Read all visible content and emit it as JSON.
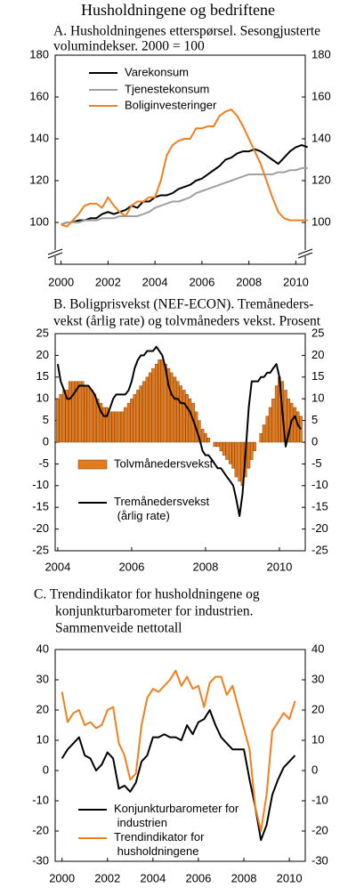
{
  "title": "Husholdningene og bedriftene",
  "chart_data": [
    {
      "type": "line",
      "title": [
        "A. Husholdningenes etterspørsel. Sesongjusterte",
        "volumindekser. 2000 = 100"
      ],
      "xlim": [
        1999.75,
        2010.4
      ],
      "xticks": [
        2000,
        2002,
        2004,
        2006,
        2008,
        2010
      ],
      "ylim": [
        80,
        180
      ],
      "yticks": [
        100,
        120,
        140,
        160,
        180
      ],
      "axis_break": true,
      "legend": "upper left",
      "x": [
        2000,
        2000.25,
        2000.5,
        2000.75,
        2001,
        2001.25,
        2001.5,
        2001.75,
        2002,
        2002.25,
        2002.5,
        2002.75,
        2003,
        2003.25,
        2003.5,
        2003.75,
        2004,
        2004.25,
        2004.5,
        2004.75,
        2005,
        2005.25,
        2005.5,
        2005.75,
        2006,
        2006.25,
        2006.5,
        2006.75,
        2007,
        2007.25,
        2007.5,
        2007.75,
        2008,
        2008.25,
        2008.5,
        2008.75,
        2009,
        2009.25,
        2009.5,
        2009.75,
        2010,
        2010.25,
        2010.5
      ],
      "series": [
        {
          "name": "Varekonsum",
          "color": "#000000",
          "values": [
            99,
            100,
            100,
            101,
            101,
            102,
            102,
            104,
            105,
            104,
            105,
            106,
            108,
            107,
            110,
            110,
            112,
            113,
            113,
            114,
            116,
            117,
            118,
            120,
            121,
            123,
            125,
            127,
            130,
            131,
            133,
            134,
            134,
            135,
            134,
            132,
            130,
            128,
            131,
            134,
            136,
            137,
            136
          ]
        },
        {
          "name": "Tjenestekonsum",
          "color": "#a0a0a0",
          "values": [
            99,
            100,
            100,
            100,
            101,
            101,
            101,
            102,
            102,
            102,
            103,
            103,
            103,
            103,
            104,
            105,
            107,
            108,
            109,
            110,
            110,
            111,
            112,
            114,
            115,
            116,
            117,
            118,
            119,
            120,
            121,
            122,
            123,
            123,
            123,
            123,
            123,
            124,
            124,
            125,
            125,
            126,
            126
          ]
        },
        {
          "name": "Boliginvesteringer",
          "color": "#f07f1e",
          "values": [
            99,
            98,
            101,
            104,
            108,
            109,
            109,
            107,
            112,
            108,
            105,
            103,
            108,
            110,
            110,
            112,
            112,
            120,
            132,
            137,
            139,
            140,
            140,
            145,
            145,
            146,
            146,
            151,
            153,
            154,
            151,
            146,
            140,
            134,
            128,
            120,
            112,
            105,
            102,
            101,
            101,
            101,
            101
          ]
        }
      ]
    },
    {
      "type": "combo",
      "title": [
        "B. Boligprisvekst (NEF-ECON). Tremåneders-",
        "vekst (årlig rate) og tolvmåneders vekst. Prosent"
      ],
      "xlim": [
        2003.93,
        2010.7
      ],
      "xticks": [
        2004,
        2006,
        2008,
        2010
      ],
      "ylim": [
        -25,
        25
      ],
      "yticks": [
        -25,
        -20,
        -15,
        -10,
        -5,
        0,
        5,
        10,
        15,
        20,
        25
      ],
      "legend": "lower left",
      "x": [
        2004,
        2004.08,
        2004.17,
        2004.25,
        2004.33,
        2004.42,
        2004.5,
        2004.58,
        2004.67,
        2004.75,
        2004.83,
        2004.92,
        2005,
        2005.08,
        2005.17,
        2005.25,
        2005.33,
        2005.42,
        2005.5,
        2005.58,
        2005.67,
        2005.75,
        2005.83,
        2005.92,
        2006,
        2006.08,
        2006.17,
        2006.25,
        2006.33,
        2006.42,
        2006.5,
        2006.58,
        2006.67,
        2006.75,
        2006.83,
        2006.92,
        2007,
        2007.08,
        2007.17,
        2007.25,
        2007.33,
        2007.42,
        2007.5,
        2007.58,
        2007.67,
        2007.75,
        2007.83,
        2007.92,
        2008,
        2008.08,
        2008.17,
        2008.25,
        2008.33,
        2008.42,
        2008.5,
        2008.58,
        2008.67,
        2008.75,
        2008.83,
        2008.92,
        2009,
        2009.08,
        2009.17,
        2009.25,
        2009.33,
        2009.42,
        2009.5,
        2009.58,
        2009.67,
        2009.75,
        2009.83,
        2009.92,
        2010,
        2010.08,
        2010.17,
        2010.25,
        2010.33,
        2010.42,
        2010.5,
        2010.58
      ],
      "series": [
        {
          "name": "Tolvmånedersvekst",
          "type": "bar",
          "color": "#e57a1c",
          "values": [
            10,
            11,
            12,
            12,
            14,
            14,
            14,
            14,
            14,
            13,
            13,
            12,
            11,
            10,
            9,
            8,
            8,
            7,
            7,
            7,
            7,
            7,
            8,
            9,
            10,
            11,
            12,
            13,
            14,
            15,
            16,
            17,
            18,
            19,
            19,
            18,
            17,
            16,
            15,
            14,
            13,
            12,
            11,
            10,
            9,
            7,
            5,
            3,
            2,
            1,
            0,
            -1,
            -1,
            -2,
            -3,
            -4,
            -5,
            -6,
            -8,
            -9,
            -10,
            -8,
            -6,
            -4,
            -2,
            0,
            2,
            4,
            6,
            8,
            10,
            13,
            15,
            14,
            12,
            10,
            9,
            8,
            7,
            6
          ]
        },
        {
          "name": "Tremånedersvekst (årlig rate)",
          "type": "line",
          "color": "#000000",
          "values": [
            18,
            14,
            12,
            10,
            10,
            11,
            12,
            13,
            13,
            13,
            13,
            12,
            11,
            9,
            7,
            6,
            6,
            8,
            10,
            11,
            11,
            11,
            11,
            12,
            14,
            17,
            19,
            20,
            20,
            21,
            21,
            21,
            22,
            21,
            20,
            17,
            13,
            11,
            10,
            10,
            9,
            9,
            8,
            7,
            5,
            3,
            1,
            -2,
            -3,
            -3,
            -4,
            -5,
            -6,
            -6,
            -7,
            -8,
            -9,
            -10,
            -13,
            -17,
            -12,
            -3,
            8,
            14,
            14,
            14,
            15,
            15,
            16,
            16,
            17,
            18,
            15,
            7,
            -1,
            2,
            5,
            6,
            4,
            3
          ]
        }
      ]
    },
    {
      "type": "line",
      "title": [
        "C. Trendindikator for husholdningene og",
        "konjunkturbarometer for industrien.",
        "Sammenveide nettotall"
      ],
      "xlim": [
        1999.7,
        2010.7
      ],
      "xticks": [
        2000,
        2002,
        2004,
        2006,
        2008,
        2010
      ],
      "ylim": [
        -30,
        40
      ],
      "yticks": [
        -30,
        -20,
        -10,
        0,
        10,
        20,
        30,
        40
      ],
      "legend": "lower left",
      "x": [
        2000,
        2000.25,
        2000.5,
        2000.75,
        2001,
        2001.25,
        2001.5,
        2001.75,
        2002,
        2002.25,
        2002.5,
        2002.75,
        2003,
        2003.25,
        2003.5,
        2003.75,
        2004,
        2004.25,
        2004.5,
        2004.75,
        2005,
        2005.25,
        2005.5,
        2005.75,
        2006,
        2006.25,
        2006.5,
        2006.75,
        2007,
        2007.25,
        2007.5,
        2007.75,
        2008,
        2008.25,
        2008.5,
        2008.75,
        2009,
        2009.25,
        2009.5,
        2009.75,
        2010,
        2010.25
      ],
      "series": [
        {
          "name": "Konjunkturbarometer for industrien",
          "color": "#000000",
          "values": [
            4,
            7,
            9,
            11,
            5,
            4,
            0,
            2,
            6,
            4,
            -6,
            -5,
            -7,
            -4,
            3,
            5,
            11,
            11,
            12,
            11,
            11,
            10,
            15,
            12,
            16,
            17,
            20,
            15,
            11,
            9,
            7,
            7,
            7,
            -3,
            -12,
            -23,
            -18,
            -8,
            -3,
            1,
            3,
            5
          ]
        },
        {
          "name": "Trendindikator for husholdningene",
          "color": "#f07f1e",
          "values": [
            26,
            16,
            19,
            20,
            15,
            16,
            14,
            15,
            20,
            21,
            9,
            5,
            -3,
            -1,
            15,
            24,
            27,
            26,
            28,
            30,
            33,
            28,
            31,
            27,
            28,
            21,
            29,
            31,
            31,
            25,
            28,
            21,
            14,
            7,
            -12,
            -20,
            -8,
            13,
            16,
            19,
            17,
            23
          ]
        }
      ]
    }
  ]
}
